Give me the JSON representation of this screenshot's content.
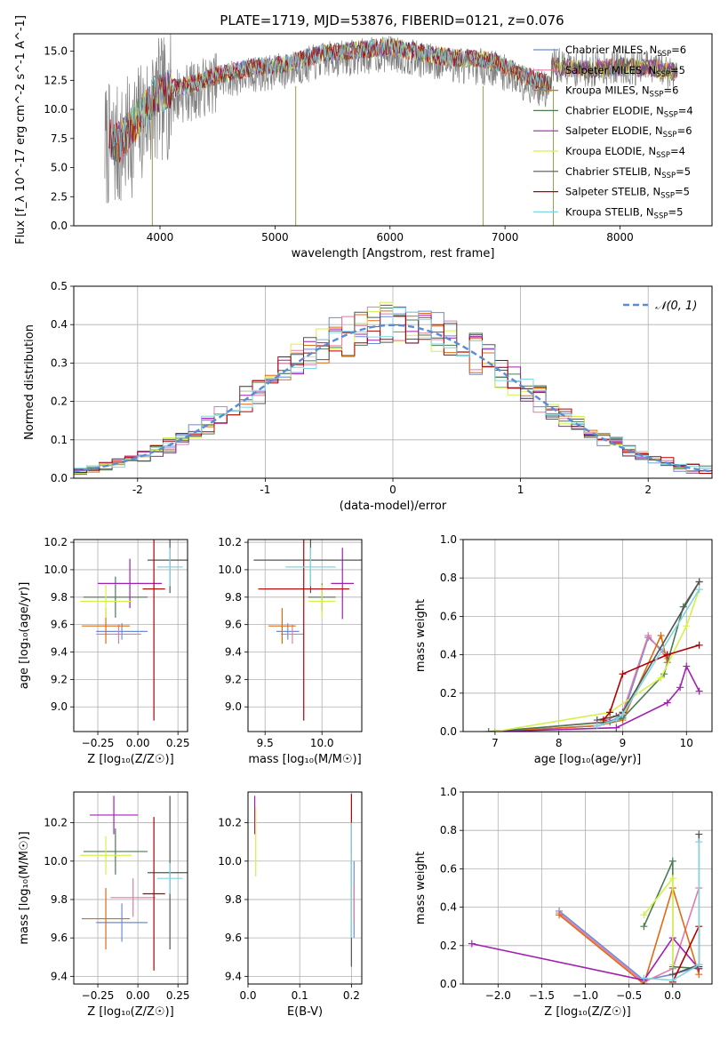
{
  "figure": {
    "title": "PLATE=1719, MJD=53876, FIBERID=0121, z=0.076"
  },
  "palette": {
    "Chabrier MILES": "#6b8bd6",
    "Salpeter MILES": "#e07ba8",
    "Kroupa MILES": "#e06a10",
    "Chabrier ELODIE": "#4c7a52",
    "Salpeter ELODIE": "#a020b0",
    "Kroupa ELODIE": "#d4f04a",
    "Chabrier STELIB": "#555555",
    "Salpeter STELIB": "#b00000",
    "Kroupa STELIB": "#7fd6e0",
    "data": "#808080",
    "gauss": "#5b8bd6"
  },
  "chart_data": [
    {
      "id": "spectrum",
      "type": "line",
      "title": "PLATE=1719, MJD=53876, FIBERID=0121, z=0.076",
      "xlabel": "wavelength [Angstrom, rest frame]",
      "ylabel": "Flux [f_λ 10^-17 erg cm^-2 s^-1 A^-1]",
      "xlim": [
        3250,
        8800
      ],
      "ylim": [
        0,
        16.5
      ],
      "xticks": [
        4000,
        5000,
        6000,
        7000,
        8000
      ],
      "yticks": [
        0.0,
        2.5,
        5.0,
        7.5,
        10.0,
        12.5,
        15.0
      ],
      "grid": false,
      "legend_position": "right",
      "legend": [
        {
          "label": "Chabrier MILES, N",
          "sub": "SSP",
          "n": "=6"
        },
        {
          "label": "Salpeter MILES, N",
          "sub": "SSP",
          "n": "=5"
        },
        {
          "label": "Kroupa MILES, N",
          "sub": "SSP",
          "n": "=6"
        },
        {
          "label": "Chabrier ELODIE, N",
          "sub": "SSP",
          "n": "=4"
        },
        {
          "label": "Salpeter ELODIE, N",
          "sub": "SSP",
          "n": "=6"
        },
        {
          "label": "Kroupa ELODIE, N",
          "sub": "SSP",
          "n": "=4"
        },
        {
          "label": "Chabrier STELIB, N",
          "sub": "SSP",
          "n": "=5"
        },
        {
          "label": "Salpeter STELIB, N",
          "sub": "SSP",
          "n": "=5"
        },
        {
          "label": "Kroupa STELIB, N",
          "sub": "SSP",
          "n": "=5"
        }
      ],
      "continuum_x": [
        3500,
        3650,
        3800,
        3950,
        4100,
        4300,
        4500,
        4800,
        5100,
        5400,
        5700,
        6000,
        6300,
        6600,
        6900,
        7200,
        7400
      ],
      "continuum_y": [
        7.0,
        6.6,
        8.4,
        10.5,
        11.2,
        11.6,
        12.4,
        13.0,
        13.3,
        14.2,
        14.5,
        14.8,
        14.2,
        13.8,
        13.6,
        12.2,
        11.5
      ],
      "model_tail_x": [
        7400,
        7700,
        8000,
        8300,
        8500
      ],
      "model_tail_y": [
        13.8,
        13.4,
        13.7,
        13.5,
        13.2
      ],
      "absorption_lines": [
        {
          "x": 3933,
          "y": 0.0
        },
        {
          "x": 5180,
          "y": 0.0
        },
        {
          "x": 6810,
          "y": 0.0
        },
        {
          "x": 7420,
          "y": 0.0
        }
      ]
    },
    {
      "id": "residuals",
      "type": "histogram",
      "xlabel": "(data-model)/error",
      "ylabel": "Normed distribution",
      "xlim": [
        -2.5,
        2.5
      ],
      "ylim": [
        0,
        0.5
      ],
      "xticks": [
        -2,
        -1,
        0,
        1,
        2
      ],
      "yticks": [
        0.0,
        0.1,
        0.2,
        0.3,
        0.4,
        0.5
      ],
      "grid": true,
      "bin_width": 0.1,
      "legend_position": "top-right",
      "gauss_label": "𝒩(0, 1)"
    },
    {
      "id": "age_vs_Z",
      "type": "errorbar",
      "xlabel": "Z [log₁₀(Z/Z☉)]",
      "ylabel": "age  [log₁₀(age/yr)]",
      "xlim": [
        -0.4,
        0.31
      ],
      "ylim": [
        8.82,
        10.22
      ],
      "xticks": [
        -0.25,
        0.0,
        0.25
      ],
      "xticklabels": [
        "−0.25",
        "0.00",
        "0.25"
      ],
      "yticks": [
        9.0,
        9.2,
        9.4,
        9.6,
        9.8,
        10.0,
        10.2
      ],
      "grid": true,
      "points": [
        {
          "series": "Chabrier MILES",
          "x": -0.1,
          "xerr": 0.16,
          "y": 9.55,
          "yerr": 0.06
        },
        {
          "series": "Salpeter MILES",
          "x": -0.12,
          "xerr": 0.14,
          "y": 9.53,
          "yerr": 0.07
        },
        {
          "series": "Kroupa MILES",
          "x": -0.2,
          "xerr": 0.15,
          "y": 9.59,
          "yerr": 0.13
        },
        {
          "series": "Chabrier ELODIE",
          "x": -0.14,
          "xerr": 0.2,
          "y": 9.8,
          "yerr": 0.15
        },
        {
          "series": "Salpeter ELODIE",
          "x": -0.05,
          "xerr": 0.2,
          "y": 9.9,
          "yerr": 0.18
        },
        {
          "series": "Kroupa ELODIE",
          "x": -0.2,
          "xerr": 0.16,
          "y": 9.77,
          "yerr": 0.12
        },
        {
          "series": "Chabrier STELIB",
          "x": 0.2,
          "xerr": 0.14,
          "y": 10.07,
          "yerr": 0.24
        },
        {
          "series": "Salpeter STELIB",
          "x": 0.1,
          "xerr": 0.07,
          "y": 9.86,
          "yerr": 0.96
        },
        {
          "series": "Kroupa STELIB",
          "x": 0.2,
          "xerr": 0.08,
          "y": 10.02,
          "yerr": 0.14
        }
      ]
    },
    {
      "id": "age_vs_mass",
      "type": "errorbar",
      "xlabel": "mass [log₁₀(M/M☉)]",
      "ylabel": "",
      "xlim": [
        9.35,
        10.35
      ],
      "ylim": [
        8.82,
        10.22
      ],
      "xticks": [
        9.5,
        10.0
      ],
      "xticklabels": [
        "9.5",
        "10.0"
      ],
      "yticks": [
        9.0,
        9.2,
        9.4,
        9.6,
        9.8,
        10.0,
        10.2
      ],
      "grid": true,
      "points": [
        {
          "series": "Chabrier MILES",
          "x": 9.7,
          "xerr": 0.1,
          "y": 9.55,
          "yerr": 0.06
        },
        {
          "series": "Salpeter MILES",
          "x": 9.74,
          "xerr": 0.1,
          "y": 9.53,
          "yerr": 0.07
        },
        {
          "series": "Kroupa MILES",
          "x": 9.65,
          "xerr": 0.12,
          "y": 9.59,
          "yerr": 0.13
        },
        {
          "series": "Chabrier ELODIE",
          "x": 10.0,
          "xerr": 0.12,
          "y": 9.8,
          "yerr": 0.1
        },
        {
          "series": "Salpeter ELODIE",
          "x": 10.18,
          "xerr": 0.1,
          "y": 9.9,
          "yerr": 0.26
        },
        {
          "series": "Kroupa ELODIE",
          "x": 10.0,
          "xerr": 0.12,
          "y": 9.77,
          "yerr": 0.12
        },
        {
          "series": "Chabrier STELIB",
          "x": 9.9,
          "xerr": 0.5,
          "y": 10.07,
          "yerr": 0.24
        },
        {
          "series": "Salpeter STELIB",
          "x": 9.84,
          "xerr": 0.4,
          "y": 9.86,
          "yerr": 0.96
        },
        {
          "series": "Kroupa STELIB",
          "x": 9.9,
          "xerr": 0.22,
          "y": 10.02,
          "yerr": 0.14
        }
      ]
    },
    {
      "id": "weight_vs_age",
      "type": "line",
      "xlabel": "age  [log₁₀(age/yr)]",
      "ylabel": "mass weight",
      "xlim": [
        6.5,
        10.4
      ],
      "ylim": [
        0,
        1.0
      ],
      "xticks": [
        7,
        8,
        9,
        10
      ],
      "yticks": [
        0.0,
        0.2,
        0.4,
        0.6,
        0.8,
        1.0
      ],
      "grid": true,
      "series": [
        {
          "name": "Chabrier MILES",
          "x": [
            7.0,
            8.6,
            9.0,
            9.4,
            9.7
          ],
          "y": [
            0.0,
            0.03,
            0.08,
            0.49,
            0.4
          ]
        },
        {
          "name": "Salpeter MILES",
          "x": [
            7.0,
            8.7,
            9.0,
            9.4,
            9.7
          ],
          "y": [
            0.0,
            0.05,
            0.1,
            0.5,
            0.38
          ]
        },
        {
          "name": "Kroupa MILES",
          "x": [
            7.0,
            8.6,
            9.0,
            9.6,
            9.7
          ],
          "y": [
            0.0,
            0.03,
            0.06,
            0.5,
            0.36
          ]
        },
        {
          "name": "Chabrier ELODIE",
          "x": [
            6.9,
            8.8,
            9.0,
            9.65,
            9.95,
            10.2
          ],
          "y": [
            0.0,
            0.05,
            0.07,
            0.3,
            0.65,
            0.78
          ]
        },
        {
          "name": "Salpeter ELODIE",
          "x": [
            7.0,
            8.9,
            9.7,
            9.9,
            10.0,
            10.2
          ],
          "y": [
            0.0,
            0.02,
            0.15,
            0.23,
            0.34,
            0.21
          ]
        },
        {
          "name": "Kroupa ELODIE",
          "x": [
            7.0,
            8.8,
            9.6,
            10.0,
            10.2
          ],
          "y": [
            0.0,
            0.1,
            0.28,
            0.55,
            0.74
          ]
        },
        {
          "name": "Chabrier STELIB",
          "x": [
            8.6,
            8.9,
            9.0,
            10.2
          ],
          "y": [
            0.06,
            0.08,
            0.1,
            0.78
          ]
        },
        {
          "name": "Salpeter STELIB",
          "x": [
            8.7,
            8.8,
            9.0,
            9.7,
            10.2
          ],
          "y": [
            0.06,
            0.1,
            0.3,
            0.4,
            0.45
          ]
        },
        {
          "name": "Kroupa STELIB",
          "x": [
            8.6,
            8.9,
            9.0,
            10.2
          ],
          "y": [
            0.03,
            0.06,
            0.09,
            0.74
          ]
        }
      ]
    },
    {
      "id": "mass_vs_Z",
      "type": "errorbar",
      "xlabel": "Z [log₁₀(Z/Z☉)]",
      "ylabel": "mass [log₁₀(M/M☉)]",
      "xlim": [
        -0.4,
        0.31
      ],
      "ylim": [
        9.36,
        10.36
      ],
      "xticks": [
        -0.25,
        0.0,
        0.25
      ],
      "xticklabels": [
        "−0.25",
        "0.00",
        "0.25"
      ],
      "yticks": [
        9.4,
        9.6,
        9.8,
        10.0,
        10.2
      ],
      "grid": true,
      "points": [
        {
          "series": "Chabrier MILES",
          "x": -0.1,
          "xerr": 0.16,
          "y": 9.68,
          "yerr": 0.1
        },
        {
          "series": "Salpeter MILES",
          "x": -0.03,
          "xerr": 0.14,
          "y": 9.81,
          "yerr": 0.1
        },
        {
          "series": "Kroupa MILES",
          "x": -0.2,
          "xerr": 0.15,
          "y": 9.7,
          "yerr": 0.16
        },
        {
          "series": "Chabrier ELODIE",
          "x": -0.14,
          "xerr": 0.2,
          "y": 10.05,
          "yerr": 0.12
        },
        {
          "series": "Salpeter ELODIE",
          "x": -0.15,
          "xerr": 0.15,
          "y": 10.24,
          "yerr": 0.1
        },
        {
          "series": "Kroupa ELODIE",
          "x": -0.2,
          "xerr": 0.16,
          "y": 10.03,
          "yerr": 0.1
        },
        {
          "series": "Chabrier STELIB",
          "x": 0.2,
          "xerr": 0.14,
          "y": 9.94,
          "yerr": 0.4
        },
        {
          "series": "Salpeter STELIB",
          "x": 0.1,
          "xerr": 0.07,
          "y": 9.83,
          "yerr": 0.4
        },
        {
          "series": "Kroupa STELIB",
          "x": 0.2,
          "xerr": 0.08,
          "y": 9.91,
          "yerr": 0.08
        }
      ]
    },
    {
      "id": "mass_vs_ebv",
      "type": "errorbar",
      "xlabel": "E(B-V)",
      "ylabel": "",
      "xlim": [
        0.0,
        0.22
      ],
      "ylim": [
        9.36,
        10.36
      ],
      "xticks": [
        0.0,
        0.1,
        0.2
      ],
      "xticklabels": [
        "0.0",
        "0.1",
        "0.2"
      ],
      "yticks": [
        9.4,
        9.6,
        9.8,
        10.0,
        10.2
      ],
      "grid": true,
      "points": [
        {
          "series": "Salpeter ELODIE",
          "x": 0.013,
          "xerr": 0,
          "y": 10.24,
          "yerr": 0.1
        },
        {
          "series": "Kroupa ELODIE",
          "x": 0.015,
          "xerr": 0,
          "y": 10.1,
          "yerr": 0.18
        },
        {
          "series": "Salpeter STELIB",
          "x": 0.2,
          "xerr": 0,
          "y": 10.2,
          "yerr": 0.15
        },
        {
          "series": "Chabrier STELIB",
          "x": 0.2,
          "xerr": 0,
          "y": 9.75,
          "yerr": 0.3
        },
        {
          "series": "Kroupa STELIB",
          "x": 0.2,
          "xerr": 0,
          "y": 9.9,
          "yerr": 0.3
        },
        {
          "series": "Chabrier MILES",
          "x": 0.205,
          "xerr": 0,
          "y": 9.8,
          "yerr": 0.2
        },
        {
          "series": "Salpeter MILES",
          "x": 0.205,
          "xerr": 0,
          "y": 9.78,
          "yerr": 0.1
        }
      ]
    },
    {
      "id": "weight_vs_Z",
      "type": "line",
      "xlabel": "Z [log₁₀(Z/Z☉)]",
      "ylabel": "mass weight",
      "xlim": [
        -2.4,
        0.45
      ],
      "ylim": [
        0,
        1.0
      ],
      "xticks": [
        -2.0,
        -1.5,
        -1.0,
        -0.5,
        0.0
      ],
      "xticklabels": [
        "−2.0",
        "−1.5",
        "−1.0",
        "−0.5",
        "0.0"
      ],
      "yticks": [
        0.0,
        0.2,
        0.4,
        0.6,
        0.8,
        1.0
      ],
      "grid": true,
      "series": [
        {
          "name": "Chabrier MILES",
          "x": [
            -1.3,
            -0.33,
            0.0,
            0.3
          ],
          "y": [
            0.38,
            0.02,
            0.05,
            0.09
          ]
        },
        {
          "name": "Salpeter MILES",
          "x": [
            -1.3,
            -0.33,
            0.0,
            0.3
          ],
          "y": [
            0.37,
            0.01,
            0.08,
            0.5
          ]
        },
        {
          "name": "Kroupa MILES",
          "x": [
            -1.3,
            -0.33,
            0.0,
            0.3
          ],
          "y": [
            0.36,
            0.0,
            0.5,
            0.05
          ]
        },
        {
          "name": "Chabrier ELODIE",
          "x": [
            -0.33,
            0.0,
            0.0,
            0.3
          ],
          "y": [
            0.3,
            0.64,
            0.09,
            0.08
          ]
        },
        {
          "name": "Salpeter ELODIE",
          "x": [
            -2.3,
            -0.33,
            0.0,
            0.3
          ],
          "y": [
            0.21,
            0.02,
            0.24,
            0.08
          ]
        },
        {
          "name": "Kroupa ELODIE",
          "x": [
            -0.33,
            0.0,
            0.0
          ],
          "y": [
            0.36,
            0.55,
            0.1
          ]
        },
        {
          "name": "Chabrier STELIB",
          "x": [
            0.0,
            0.3,
            0.3
          ],
          "y": [
            0.05,
            0.1,
            0.78
          ]
        },
        {
          "name": "Salpeter STELIB",
          "x": [
            0.0,
            0.3,
            0.3
          ],
          "y": [
            0.01,
            0.3,
            0.09
          ]
        },
        {
          "name": "Kroupa STELIB",
          "x": [
            -0.33,
            0.0,
            0.3,
            0.3
          ],
          "y": [
            0.03,
            0.02,
            0.1,
            0.74
          ]
        }
      ]
    }
  ]
}
